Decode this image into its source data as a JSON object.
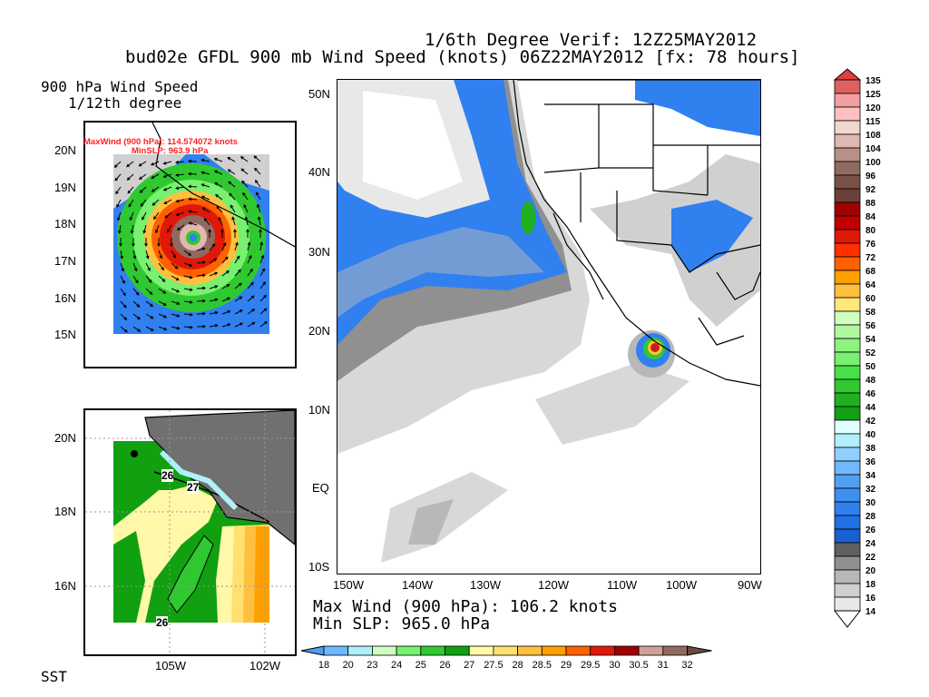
{
  "title": {
    "line1": "1/6th Degree Verif: 12Z25MAY2012",
    "line2": "bud02e GFDL 900 mb Wind Speed (knots) 06Z22MAY2012 [fx: 78 hours]"
  },
  "main_map": {
    "lat_labels": [
      "50N",
      "40N",
      "30N",
      "20N",
      "10N",
      "EQ",
      "10S"
    ],
    "lon_labels": [
      "150W",
      "140W",
      "130W",
      "120W",
      "110W",
      "100W",
      "90W"
    ],
    "max_wind": "Max Wind (900 hPa): 106.2 knots",
    "min_slp": "Min SLP: 965.0 hPa"
  },
  "inset_wind": {
    "title1": "900 hPa Wind Speed",
    "title2": "1/12th degree",
    "max_wind": "MaxWind (900 hPa): 114.574072 knots",
    "min_slp": "MinSLP: 963.9 hPa",
    "lat_labels": [
      "20N",
      "19N",
      "18N",
      "17N",
      "16N",
      "15N"
    ],
    "annotation_color": "#ff2020"
  },
  "inset_sst": {
    "title": "SST",
    "lat_labels": [
      "20N",
      "18N",
      "16N"
    ],
    "lon_labels": [
      "105W",
      "102W"
    ],
    "contour_labels": [
      "26",
      "27",
      "26"
    ]
  },
  "wind_colorbar": {
    "labels": [
      "135",
      "125",
      "120",
      "115",
      "108",
      "104",
      "100",
      "96",
      "92",
      "88",
      "84",
      "80",
      "76",
      "72",
      "68",
      "64",
      "60",
      "58",
      "56",
      "54",
      "52",
      "50",
      "48",
      "46",
      "44",
      "42",
      "40",
      "38",
      "36",
      "34",
      "32",
      "30",
      "28",
      "26",
      "24",
      "22",
      "20",
      "18",
      "16",
      "14"
    ],
    "colors": [
      "#e06060",
      "#f0a0a0",
      "#ffc0c0",
      "#f0d8d0",
      "#e0b8b0",
      "#b89088",
      "#906a60",
      "#7a5048",
      "#6a4038",
      "#a00000",
      "#c00000",
      "#e01808",
      "#ff3000",
      "#ff6000",
      "#ffa000",
      "#ffc040",
      "#ffe878",
      "#d0ffc0",
      "#b0f8a0",
      "#90f080",
      "#78f070",
      "#48e048",
      "#30c830",
      "#20b020",
      "#10a010",
      "#e0ffff",
      "#b0f0f8",
      "#90d0ff",
      "#70b8ff",
      "#50a0f0",
      "#4090f0",
      "#3080f0",
      "#2070e8",
      "#1860d0",
      "#606060",
      "#909090",
      "#b8b8b8",
      "#d0d0d0",
      "#e8e8e8"
    ],
    "top_color": "#e04040",
    "bottom_color": "#ffffff"
  },
  "sst_colorbar": {
    "labels": [
      "18",
      "20",
      "23",
      "24",
      "25",
      "26",
      "27",
      "27.5",
      "28",
      "28.5",
      "29",
      "29.5",
      "30",
      "30.5",
      "31",
      "32"
    ],
    "colors": [
      "#70b8ff",
      "#b0f0f8",
      "#d0ffc0",
      "#78f070",
      "#30c830",
      "#10a010",
      "#fff8a8",
      "#ffe070",
      "#ffc040",
      "#ffa000",
      "#ff6000",
      "#e01808",
      "#a00000",
      "#d0a098",
      "#906a60"
    ],
    "left_color": "#50a0f0",
    "right_color": "#6a4a40"
  }
}
